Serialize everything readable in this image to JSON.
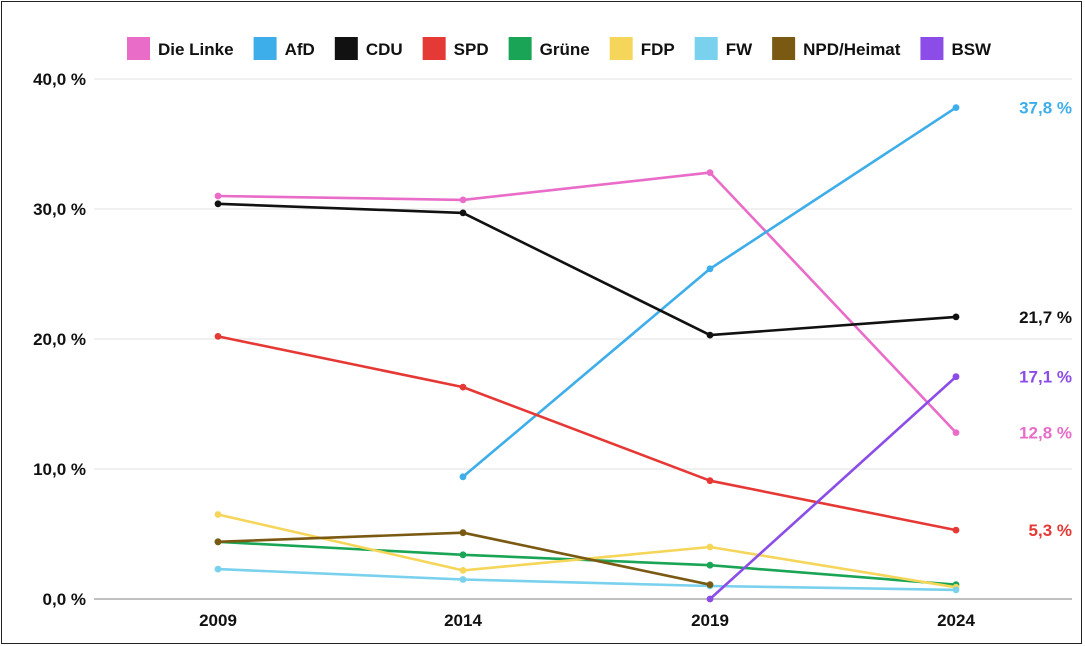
{
  "chart_data": {
    "type": "line",
    "categories": [
      "2009",
      "2014",
      "2019",
      "2024"
    ],
    "ylim": [
      0,
      40
    ],
    "y_ticks": [
      "0,0 %",
      "10,0 %",
      "20,0 %",
      "30,0 %",
      "40,0 %"
    ],
    "y_tick_values": [
      0,
      10,
      20,
      30,
      40
    ],
    "grid": true,
    "legend_position": "top",
    "series": [
      {
        "name": "Die Linke",
        "color": "#e96cc8",
        "values": [
          31.0,
          30.7,
          32.8,
          12.8
        ],
        "end_label": "12,8 %"
      },
      {
        "name": "AfD",
        "color": "#3daee9",
        "values": [
          null,
          9.4,
          25.4,
          37.8
        ],
        "end_label": "37,8 %"
      },
      {
        "name": "CDU",
        "color": "#111111",
        "values": [
          30.4,
          29.7,
          20.3,
          21.7
        ],
        "end_label": "21,7 %"
      },
      {
        "name": "SPD",
        "color": "#e53935",
        "values": [
          20.2,
          16.3,
          9.1,
          5.3
        ],
        "end_label": "5,3 %"
      },
      {
        "name": "Grüne",
        "color": "#1aa556",
        "values": [
          4.4,
          3.4,
          2.6,
          1.1
        ],
        "end_label": ""
      },
      {
        "name": "FDP",
        "color": "#f5d65a",
        "values": [
          6.5,
          2.2,
          4.0,
          0.9
        ],
        "end_label": ""
      },
      {
        "name": "FW",
        "color": "#79d1ee",
        "values": [
          2.3,
          1.5,
          1.0,
          0.7
        ],
        "end_label": ""
      },
      {
        "name": "NPD/Heimat",
        "color": "#7a5a12",
        "values": [
          4.4,
          5.1,
          1.1,
          null
        ],
        "end_label": ""
      },
      {
        "name": "BSW",
        "color": "#8b4ce8",
        "values": [
          null,
          null,
          0.0,
          17.1
        ],
        "end_label": "17,1 %"
      }
    ]
  }
}
